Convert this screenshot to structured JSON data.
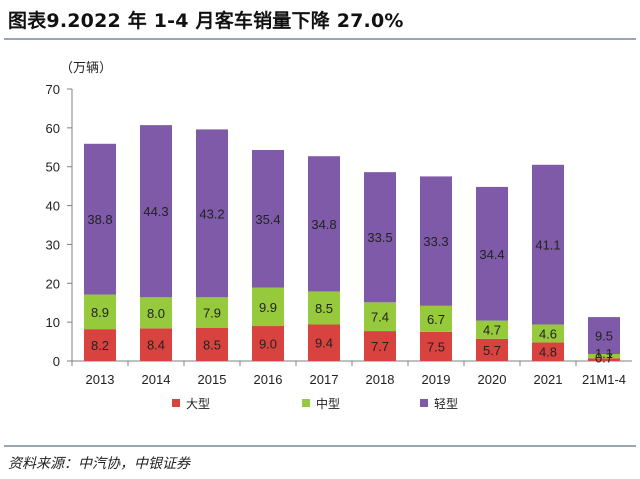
{
  "header": {
    "title": "图表9.2022 年 1-4 月客车销量下降 27.0%"
  },
  "footer": {
    "source": "资料来源：中汽协，中银证券"
  },
  "colors": {
    "large": "#d9433f",
    "medium": "#97c93d",
    "light": "#7e5aa8"
  },
  "chart_data": {
    "type": "bar",
    "stacked": true,
    "unit": "（万辆）",
    "categories": [
      "2013",
      "2014",
      "2015",
      "2016",
      "2017",
      "2018",
      "2019",
      "2020",
      "2021",
      "21M1-4"
    ],
    "ylim": [
      0,
      70
    ],
    "yticks": [
      0,
      10,
      20,
      30,
      40,
      50,
      60,
      70
    ],
    "legend_position": "bottom",
    "series": [
      {
        "name": "大型",
        "color": "#d9433f",
        "values": [
          8.2,
          8.4,
          8.5,
          9.0,
          9.4,
          7.7,
          7.5,
          5.7,
          4.8,
          0.7
        ],
        "labels": [
          "8.2",
          "8.4",
          "8.5",
          "9.0",
          "9.4",
          "7.7",
          "7.5",
          "5.7",
          "4.8",
          "0.7"
        ]
      },
      {
        "name": "中型",
        "color": "#97c93d",
        "values": [
          8.9,
          8.0,
          7.9,
          9.9,
          8.5,
          7.4,
          6.7,
          4.7,
          4.6,
          1.1
        ],
        "labels": [
          "8.9",
          "8.0",
          "7.9",
          "9.9",
          "8.5",
          "7.4",
          "6.7",
          "4.7",
          "4.6",
          "1.1"
        ]
      },
      {
        "name": "轻型",
        "color": "#7e5aa8",
        "values": [
          38.8,
          44.3,
          43.2,
          35.4,
          34.8,
          33.5,
          33.3,
          34.4,
          41.1,
          9.5
        ],
        "labels": [
          "38.8",
          "44.3",
          "43.2",
          "35.4",
          "34.8",
          "33.5",
          "33.3",
          "34.4",
          "41.1",
          "9.5"
        ]
      }
    ]
  }
}
